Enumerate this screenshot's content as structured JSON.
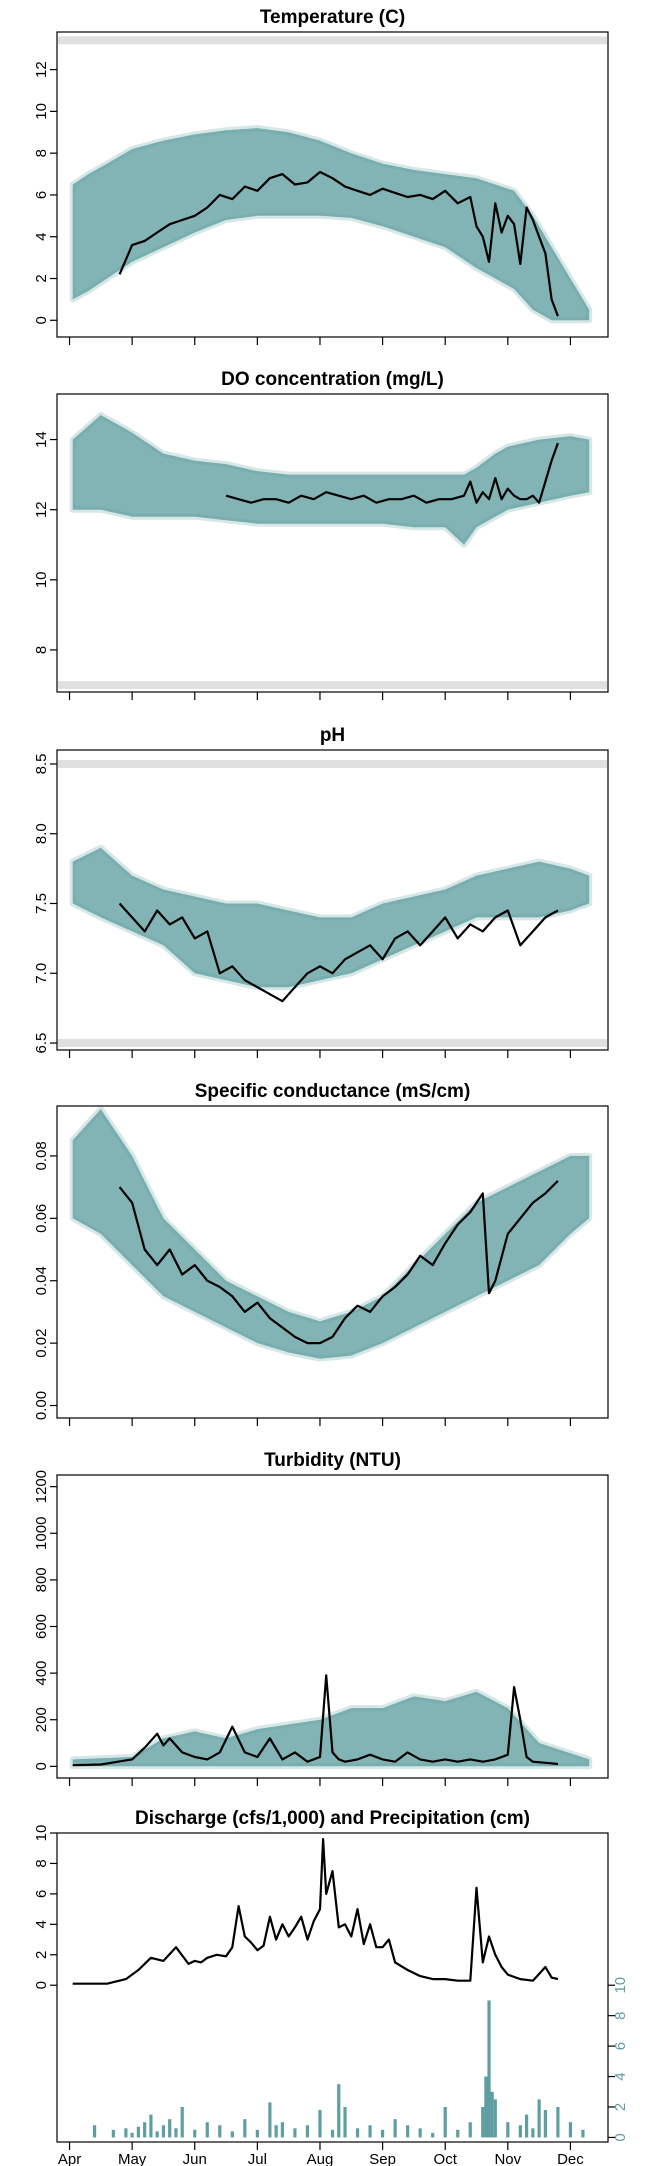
{
  "chart_data": [
    {
      "type": "scatter",
      "title": "Temperature (C)",
      "ylim": [
        -0.8,
        13.8
      ],
      "yticks": [
        0,
        2,
        4,
        6,
        8,
        10,
        12
      ],
      "threshold_bands": [
        13.4
      ],
      "series": [
        {
          "name": "",
          "kind": "envelope",
          "color": "#5f9ea0",
          "x": [
            0.05,
            0.3,
            0.6,
            1.0,
            1.5,
            2.0,
            2.5,
            3.0,
            3.5,
            4.0,
            4.5,
            5.0,
            5.5,
            6.0,
            6.5,
            6.8,
            7.1,
            7.4,
            7.7,
            8.0,
            8.3
          ],
          "low": [
            1.0,
            1.4,
            2.0,
            2.8,
            3.5,
            4.2,
            4.8,
            5.0,
            5.0,
            5.0,
            4.9,
            4.5,
            4.0,
            3.5,
            2.5,
            2.0,
            1.5,
            0.5,
            0,
            0,
            0
          ],
          "high": [
            6.5,
            7.0,
            7.5,
            8.2,
            8.6,
            8.9,
            9.1,
            9.2,
            9.0,
            8.6,
            8.0,
            7.5,
            7.2,
            7.0,
            6.8,
            6.5,
            6.2,
            5.0,
            3.5,
            2.0,
            0.5
          ]
        },
        {
          "name": "",
          "kind": "line",
          "color": "#000000",
          "x": [
            0.8,
            1.0,
            1.2,
            1.4,
            1.6,
            1.8,
            2.0,
            2.2,
            2.4,
            2.6,
            2.8,
            3.0,
            3.2,
            3.4,
            3.6,
            3.8,
            4.0,
            4.2,
            4.4,
            4.6,
            4.8,
            5.0,
            5.2,
            5.4,
            5.6,
            5.8,
            6.0,
            6.2,
            6.4,
            6.5,
            6.6,
            6.7,
            6.8,
            6.9,
            7.0,
            7.1,
            7.2,
            7.3,
            7.4,
            7.5,
            7.6,
            7.7,
            7.8
          ],
          "y": [
            2.2,
            3.6,
            3.8,
            4.2,
            4.6,
            4.8,
            5.0,
            5.4,
            6.0,
            5.8,
            6.4,
            6.2,
            6.8,
            7.0,
            6.5,
            6.6,
            7.1,
            6.8,
            6.4,
            6.2,
            6.0,
            6.3,
            6.1,
            5.9,
            6.0,
            5.8,
            6.2,
            5.6,
            5.9,
            4.5,
            4.0,
            2.8,
            5.6,
            4.2,
            5.0,
            4.6,
            2.7,
            5.4,
            4.8,
            4.0,
            3.2,
            1.0,
            0.2
          ]
        }
      ]
    },
    {
      "type": "scatter",
      "title": "DO concentration (mg/L)",
      "ylim": [
        6.8,
        15.3
      ],
      "yticks": [
        8,
        10,
        12,
        14
      ],
      "threshold_bands": [
        7.0
      ],
      "series": [
        {
          "name": "",
          "kind": "envelope",
          "color": "#5f9ea0",
          "x": [
            0.05,
            0.5,
            1.0,
            1.5,
            2.0,
            2.5,
            3.0,
            3.5,
            4.0,
            4.5,
            5.0,
            5.5,
            6.0,
            6.3,
            6.5,
            6.8,
            7.0,
            7.5,
            8.0,
            8.3
          ],
          "low": [
            12.0,
            12.0,
            11.8,
            11.8,
            11.8,
            11.7,
            11.6,
            11.6,
            11.6,
            11.6,
            11.6,
            11.5,
            11.5,
            11.0,
            11.5,
            11.8,
            12.0,
            12.2,
            12.4,
            12.5
          ],
          "high": [
            14.0,
            14.7,
            14.2,
            13.6,
            13.4,
            13.3,
            13.1,
            13.0,
            13.0,
            13.0,
            13.0,
            13.0,
            13.0,
            13.0,
            13.2,
            13.6,
            13.8,
            14.0,
            14.1,
            14.0
          ]
        },
        {
          "name": "",
          "kind": "line",
          "color": "#000000",
          "x": [
            2.5,
            2.7,
            2.9,
            3.1,
            3.3,
            3.5,
            3.7,
            3.9,
            4.1,
            4.3,
            4.5,
            4.7,
            4.9,
            5.1,
            5.3,
            5.5,
            5.7,
            5.9,
            6.1,
            6.3,
            6.4,
            6.5,
            6.6,
            6.7,
            6.8,
            6.9,
            7.0,
            7.1,
            7.2,
            7.3,
            7.4,
            7.5,
            7.6,
            7.7,
            7.8
          ],
          "y": [
            12.4,
            12.3,
            12.2,
            12.3,
            12.3,
            12.2,
            12.4,
            12.3,
            12.5,
            12.4,
            12.3,
            12.4,
            12.2,
            12.3,
            12.3,
            12.4,
            12.2,
            12.3,
            12.3,
            12.4,
            12.8,
            12.2,
            12.5,
            12.3,
            12.9,
            12.3,
            12.6,
            12.4,
            12.3,
            12.3,
            12.4,
            12.2,
            12.8,
            13.4,
            13.9
          ]
        }
      ]
    },
    {
      "type": "scatter",
      "title": "pH",
      "ylim": [
        6.45,
        8.6
      ],
      "yticks": [
        6.5,
        7.0,
        7.5,
        8.0,
        8.5
      ],
      "threshold_bands": [
        6.5,
        8.5
      ],
      "series": [
        {
          "name": "",
          "kind": "envelope",
          "color": "#5f9ea0",
          "x": [
            0.05,
            0.5,
            1.0,
            1.5,
            2.0,
            2.5,
            3.0,
            3.5,
            4.0,
            4.5,
            5.0,
            5.5,
            6.0,
            6.5,
            7.0,
            7.5,
            8.0,
            8.3
          ],
          "low": [
            7.5,
            7.4,
            7.3,
            7.2,
            7.0,
            6.95,
            6.9,
            6.9,
            6.95,
            7.0,
            7.1,
            7.2,
            7.3,
            7.4,
            7.4,
            7.4,
            7.45,
            7.5
          ],
          "high": [
            7.8,
            7.9,
            7.7,
            7.6,
            7.55,
            7.5,
            7.5,
            7.45,
            7.4,
            7.4,
            7.5,
            7.55,
            7.6,
            7.7,
            7.75,
            7.8,
            7.75,
            7.7
          ]
        },
        {
          "name": "",
          "kind": "line",
          "color": "#000000",
          "x": [
            0.8,
            1.0,
            1.2,
            1.4,
            1.6,
            1.8,
            2.0,
            2.2,
            2.4,
            2.6,
            2.8,
            3.0,
            3.2,
            3.4,
            3.6,
            3.8,
            4.0,
            4.2,
            4.4,
            4.6,
            4.8,
            5.0,
            5.2,
            5.4,
            5.6,
            5.8,
            6.0,
            6.2,
            6.4,
            6.6,
            6.8,
            7.0,
            7.2,
            7.4,
            7.6,
            7.8
          ],
          "y": [
            7.5,
            7.4,
            7.3,
            7.45,
            7.35,
            7.4,
            7.25,
            7.3,
            7.0,
            7.05,
            6.95,
            6.9,
            6.85,
            6.8,
            6.9,
            7.0,
            7.05,
            7.0,
            7.1,
            7.15,
            7.2,
            7.1,
            7.25,
            7.3,
            7.2,
            7.3,
            7.4,
            7.25,
            7.35,
            7.3,
            7.4,
            7.45,
            7.2,
            7.3,
            7.4,
            7.45
          ]
        }
      ]
    },
    {
      "type": "scatter",
      "title": "Specific conductance (mS/cm)",
      "ylim": [
        -0.004,
        0.096
      ],
      "yticks": [
        0.0,
        0.02,
        0.04,
        0.06,
        0.08
      ],
      "series": [
        {
          "name": "",
          "kind": "envelope",
          "color": "#5f9ea0",
          "x": [
            0.05,
            0.5,
            1.0,
            1.5,
            2.0,
            2.5,
            3.0,
            3.5,
            4.0,
            4.5,
            5.0,
            5.5,
            6.0,
            6.5,
            7.0,
            7.5,
            8.0,
            8.3
          ],
          "low": [
            0.06,
            0.055,
            0.045,
            0.035,
            0.03,
            0.025,
            0.02,
            0.017,
            0.015,
            0.016,
            0.02,
            0.025,
            0.03,
            0.035,
            0.04,
            0.045,
            0.055,
            0.06
          ],
          "high": [
            0.085,
            0.095,
            0.08,
            0.06,
            0.05,
            0.04,
            0.035,
            0.03,
            0.027,
            0.03,
            0.035,
            0.045,
            0.055,
            0.065,
            0.07,
            0.075,
            0.08,
            0.08
          ]
        },
        {
          "name": "",
          "kind": "line",
          "color": "#000000",
          "x": [
            0.8,
            1.0,
            1.2,
            1.4,
            1.6,
            1.8,
            2.0,
            2.2,
            2.4,
            2.6,
            2.8,
            3.0,
            3.2,
            3.4,
            3.6,
            3.8,
            4.0,
            4.2,
            4.4,
            4.6,
            4.8,
            5.0,
            5.2,
            5.4,
            5.6,
            5.8,
            6.0,
            6.2,
            6.4,
            6.6,
            6.7,
            6.8,
            7.0,
            7.2,
            7.4,
            7.6,
            7.8
          ],
          "y": [
            0.07,
            0.065,
            0.05,
            0.045,
            0.05,
            0.042,
            0.045,
            0.04,
            0.038,
            0.035,
            0.03,
            0.033,
            0.028,
            0.025,
            0.022,
            0.02,
            0.02,
            0.022,
            0.028,
            0.032,
            0.03,
            0.035,
            0.038,
            0.042,
            0.048,
            0.045,
            0.052,
            0.058,
            0.062,
            0.068,
            0.036,
            0.04,
            0.055,
            0.06,
            0.065,
            0.068,
            0.072
          ]
        }
      ]
    },
    {
      "type": "scatter",
      "title": "Turbidity (NTU)",
      "ylim": [
        -50,
        1250
      ],
      "yticks": [
        0,
        200,
        400,
        600,
        800,
        1000,
        1200
      ],
      "series": [
        {
          "name": "",
          "kind": "envelope",
          "color": "#5f9ea0",
          "x": [
            0.05,
            1.0,
            1.5,
            2.0,
            2.5,
            3.0,
            3.5,
            4.0,
            4.5,
            5.0,
            5.5,
            6.0,
            6.5,
            7.0,
            7.5,
            8.3
          ],
          "low": [
            0,
            0,
            0,
            0,
            0,
            0,
            0,
            0,
            0,
            0,
            0,
            0,
            0,
            0,
            0,
            0
          ],
          "high": [
            30,
            40,
            120,
            150,
            120,
            160,
            180,
            200,
            250,
            250,
            300,
            280,
            320,
            250,
            100,
            30
          ]
        },
        {
          "name": "",
          "kind": "line",
          "color": "#000000",
          "x": [
            0.05,
            0.5,
            1.0,
            1.2,
            1.4,
            1.5,
            1.6,
            1.8,
            2.0,
            2.2,
            2.4,
            2.6,
            2.8,
            3.0,
            3.2,
            3.4,
            3.6,
            3.8,
            4.0,
            4.1,
            4.2,
            4.3,
            4.4,
            4.6,
            4.8,
            5.0,
            5.2,
            5.4,
            5.6,
            5.8,
            6.0,
            6.2,
            6.4,
            6.6,
            6.8,
            7.0,
            7.1,
            7.2,
            7.3,
            7.4,
            7.6,
            7.8
          ],
          "y": [
            5,
            8,
            30,
            80,
            140,
            90,
            120,
            60,
            40,
            30,
            60,
            170,
            60,
            40,
            120,
            30,
            60,
            20,
            40,
            390,
            60,
            30,
            20,
            30,
            50,
            30,
            20,
            60,
            30,
            20,
            30,
            20,
            30,
            20,
            30,
            50,
            340,
            200,
            40,
            20,
            15,
            10
          ]
        }
      ]
    },
    {
      "type": "line",
      "title": "Discharge (cfs/1,000) and Precipitation (cm)",
      "ylim": [
        -10.3,
        10.0
      ],
      "yticks": [
        0,
        2,
        4,
        6,
        8,
        10
      ],
      "y2ticks": [
        0,
        2,
        4,
        6,
        8,
        10
      ],
      "x_labels": [
        "Apr",
        "May",
        "Jun",
        "Jul",
        "Aug",
        "Sep",
        "Oct",
        "Nov",
        "Dec"
      ],
      "series": [
        {
          "name": "",
          "kind": "line",
          "color": "#000000",
          "x": [
            0.05,
            0.3,
            0.6,
            0.9,
            1.1,
            1.3,
            1.5,
            1.7,
            1.9,
            2.0,
            2.1,
            2.2,
            2.35,
            2.5,
            2.6,
            2.7,
            2.8,
            2.9,
            3.0,
            3.1,
            3.2,
            3.3,
            3.4,
            3.5,
            3.6,
            3.7,
            3.8,
            3.9,
            4.0,
            4.05,
            4.1,
            4.2,
            4.3,
            4.4,
            4.5,
            4.6,
            4.7,
            4.8,
            4.9,
            5.0,
            5.1,
            5.2,
            5.4,
            5.6,
            5.8,
            6.0,
            6.2,
            6.4,
            6.5,
            6.6,
            6.7,
            6.8,
            6.9,
            7.0,
            7.2,
            7.4,
            7.6,
            7.7,
            7.8
          ],
          "y": [
            0.1,
            0.1,
            0.1,
            0.4,
            1.0,
            1.8,
            1.6,
            2.5,
            1.4,
            1.6,
            1.5,
            1.8,
            2.0,
            1.9,
            2.5,
            5.2,
            3.2,
            2.8,
            2.3,
            2.6,
            4.5,
            3.0,
            4.0,
            3.2,
            3.8,
            4.5,
            3.0,
            4.2,
            5.0,
            9.6,
            6.0,
            7.5,
            3.8,
            4.0,
            3.2,
            5.0,
            2.7,
            4.0,
            2.5,
            2.5,
            3.0,
            1.5,
            1.0,
            0.6,
            0.4,
            0.4,
            0.3,
            0.3,
            6.4,
            1.5,
            3.2,
            2.0,
            1.2,
            0.7,
            0.4,
            0.3,
            1.2,
            0.5,
            0.4
          ]
        },
        {
          "name": "",
          "kind": "bars",
          "color": "#5f9ea0",
          "baseline": -10.0,
          "x": [
            0.4,
            0.7,
            0.9,
            1.0,
            1.1,
            1.2,
            1.3,
            1.4,
            1.5,
            1.6,
            1.7,
            1.8,
            2.0,
            2.2,
            2.4,
            2.6,
            2.8,
            3.0,
            3.2,
            3.3,
            3.4,
            3.6,
            3.8,
            4.0,
            4.2,
            4.3,
            4.4,
            4.6,
            4.8,
            5.0,
            5.2,
            5.4,
            5.6,
            5.8,
            6.0,
            6.2,
            6.4,
            6.6,
            6.65,
            6.7,
            6.75,
            6.8,
            7.0,
            7.2,
            7.3,
            7.4,
            7.5,
            7.6,
            7.8,
            8.0,
            8.2
          ],
          "y": [
            0.8,
            0.5,
            0.6,
            0.3,
            0.7,
            1.0,
            1.5,
            0.4,
            0.8,
            1.2,
            0.6,
            2.0,
            0.5,
            1.0,
            0.8,
            0.4,
            1.2,
            0.5,
            2.3,
            0.8,
            1.0,
            0.6,
            0.8,
            1.8,
            0.5,
            3.5,
            2.0,
            0.6,
            0.8,
            0.5,
            1.2,
            0.8,
            0.6,
            0.3,
            2.0,
            0.5,
            1.0,
            2.0,
            4.0,
            9.0,
            3.0,
            2.5,
            1.0,
            0.8,
            1.5,
            0.6,
            2.5,
            1.8,
            2.0,
            1.0,
            0.5
          ]
        }
      ]
    }
  ]
}
